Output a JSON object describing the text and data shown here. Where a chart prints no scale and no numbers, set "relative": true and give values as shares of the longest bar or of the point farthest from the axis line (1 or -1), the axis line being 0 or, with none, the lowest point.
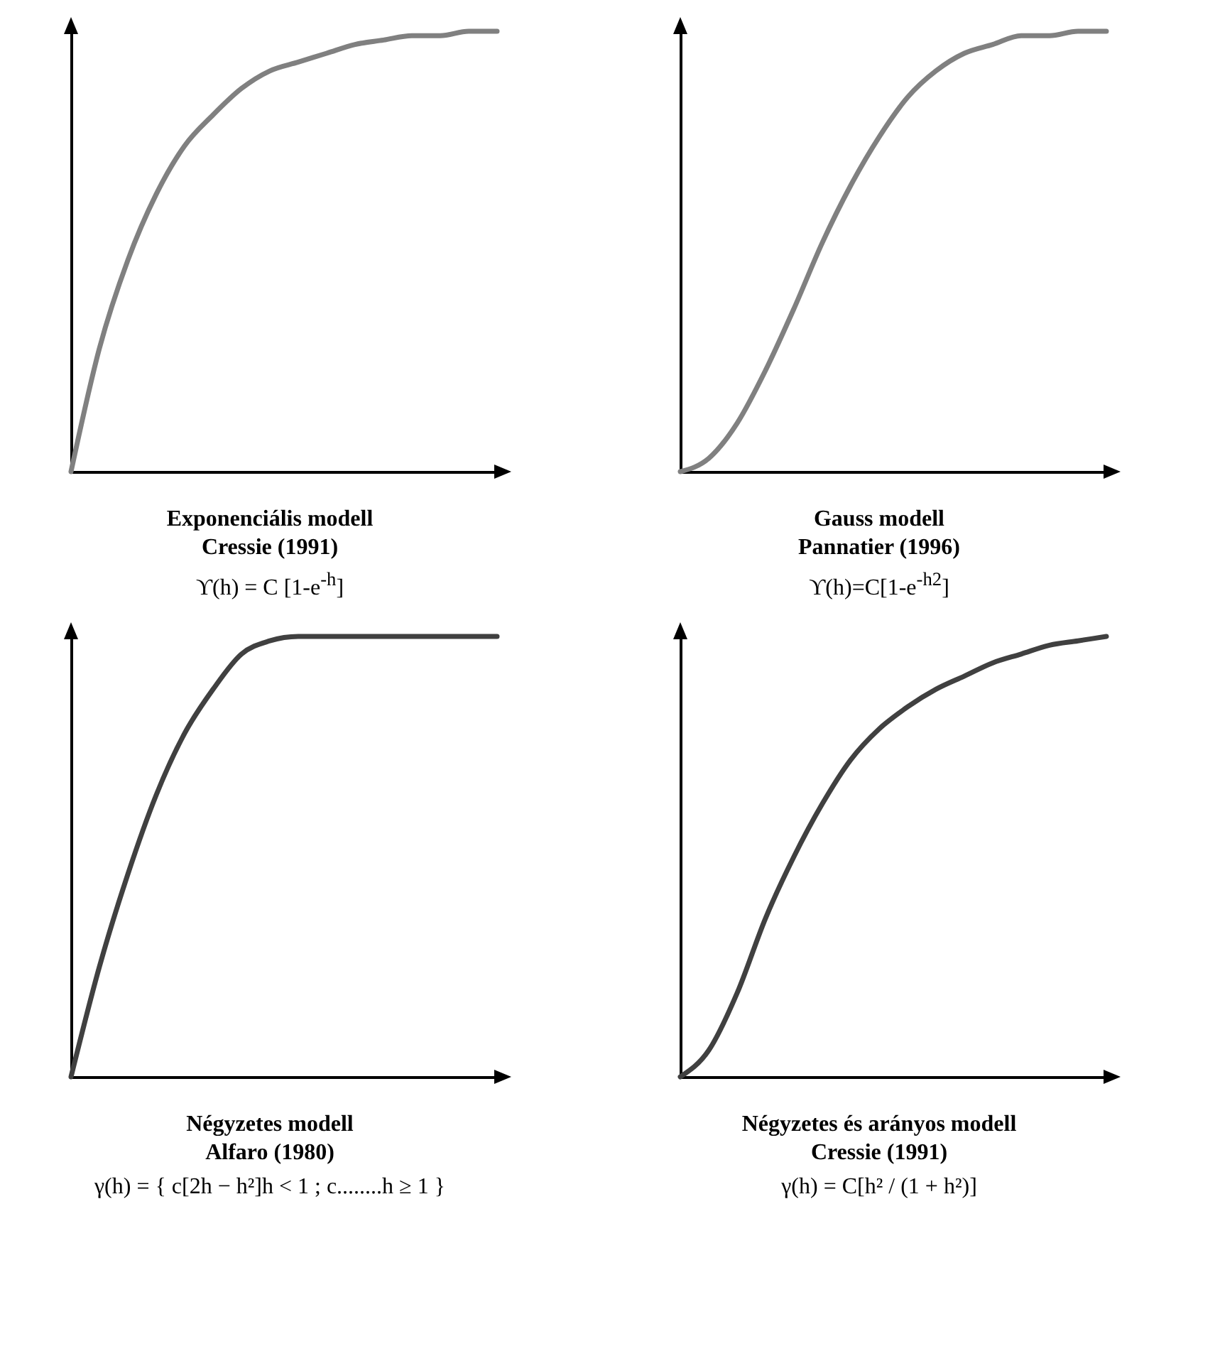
{
  "chart_data": [
    {
      "type": "line",
      "title": "Exponenciális modell",
      "subtitle": "Cressie (1991)",
      "annotations": [
        "ϒ(h) = C [1-e$^{-h}$]"
      ],
      "relative": true,
      "color": "#808080",
      "categories": [
        null,
        null,
        null,
        null,
        null,
        null,
        null,
        null,
        null,
        null,
        null,
        null,
        null,
        null,
        null,
        null
      ],
      "values": [
        0,
        0.28,
        0.48,
        0.63,
        0.74,
        0.81,
        0.87,
        0.91,
        0.93,
        0.95,
        0.97,
        0.98,
        0.99,
        0.99,
        1.0,
        1
      ]
    },
    {
      "type": "line",
      "title": "Gauss modell",
      "subtitle": "Pannatier (1996)",
      "annotations": [
        "ϒ(h)=C[1-e$^{-h2}$]"
      ],
      "relative": true,
      "color": "#808080",
      "categories": [
        null,
        null,
        null,
        null,
        null,
        null,
        null,
        null,
        null,
        null,
        null,
        null,
        null,
        null,
        null,
        null
      ],
      "values": [
        0,
        0.03,
        0.11,
        0.23,
        0.37,
        0.52,
        0.65,
        0.76,
        0.85,
        0.91,
        0.95,
        0.97,
        0.99,
        0.99,
        1.0,
        1
      ]
    },
    {
      "type": "line",
      "title": "Négyzetes modell",
      "subtitle": "Alfaro (1980)",
      "annotations": [
        "γ(h) = { c[2h − h²]h < 1 ; c........h ≥ 1 }"
      ],
      "relative": true,
      "color": "#404040",
      "categories": [
        null,
        null,
        null,
        null,
        null,
        null,
        null,
        null,
        null,
        null,
        null,
        null,
        null,
        null,
        null,
        null
      ],
      "values": [
        0,
        0.25,
        0.46,
        0.64,
        0.78,
        0.88,
        0.96,
        0.99,
        1,
        1,
        1,
        1,
        1,
        1,
        1,
        1
      ]
    },
    {
      "type": "line",
      "title": "Négyzetes és arányos modell",
      "subtitle": "Cressie (1991)",
      "annotations": [
        "γ(h) = C[h² / (1 + h²)]"
      ],
      "relative": true,
      "color": "#404040",
      "categories": [
        null,
        null,
        null,
        null,
        null,
        null,
        null,
        null,
        null,
        null,
        null,
        null,
        null,
        null,
        null,
        null
      ],
      "values": [
        0,
        0.06,
        0.19,
        0.36,
        0.5,
        0.62,
        0.72,
        0.79,
        0.84,
        0.88,
        0.91,
        0.94,
        0.96,
        0.98,
        0.99,
        1
      ]
    }
  ]
}
